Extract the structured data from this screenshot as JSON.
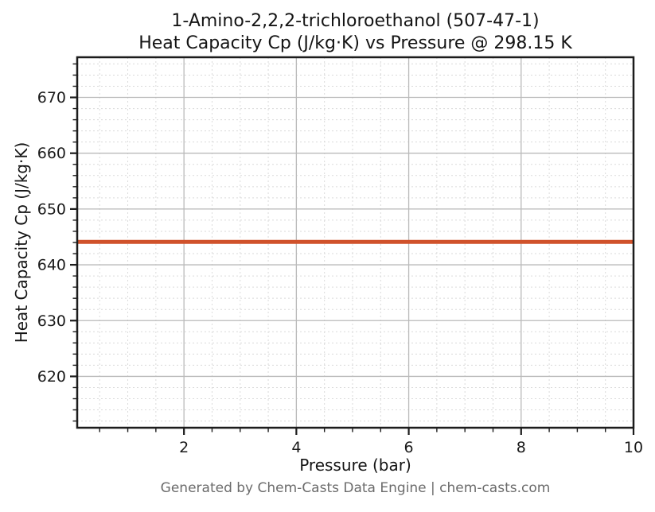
{
  "page": {
    "title_line1": "1-Amino-2,2,2-trichloroethanol (507-47-1)",
    "title_line2": "Heat Capacity Cp (J/kg·K) vs Pressure @ 298.15 K",
    "footer": "Generated by Chem-Casts Data Engine | chem-casts.com"
  },
  "chart_data": {
    "type": "line",
    "title": "1-Amino-2,2,2-trichloroethanol (507-47-1)\nHeat Capacity Cp (J/kg·K) vs Pressure @ 298.15 K",
    "xlabel": "Pressure (bar)",
    "ylabel": "Heat Capacity Cp (J/kg·K)",
    "xlim": [
      0.1,
      10
    ],
    "ylim": [
      610.8,
      677.2
    ],
    "xticks": [
      2,
      4,
      6,
      8,
      10
    ],
    "yticks": [
      620,
      630,
      640,
      650,
      660,
      670
    ],
    "x_minor_step": 0.5,
    "y_minor_step": 2,
    "grid": {
      "major": "solid",
      "minor": "dotted",
      "enabled": true
    },
    "legend": "none",
    "series": [
      {
        "name": "Heat Capacity Cp @ 298.15 K",
        "x": [
          0.1,
          10
        ],
        "y": [
          644.1,
          644.1
        ],
        "color": "#d0522b",
        "line_width": 5,
        "note": "constant Cp ≈ 644.1 J/kg·K over 0.1–10 bar"
      }
    ],
    "colors": {
      "major_grid": "#bababa",
      "minor_grid": "#dadada",
      "spine": "#1c1c1c",
      "tick_label": "#1a1a1a",
      "footer_text": "#6b6b6b",
      "background": "#ffffff"
    }
  }
}
